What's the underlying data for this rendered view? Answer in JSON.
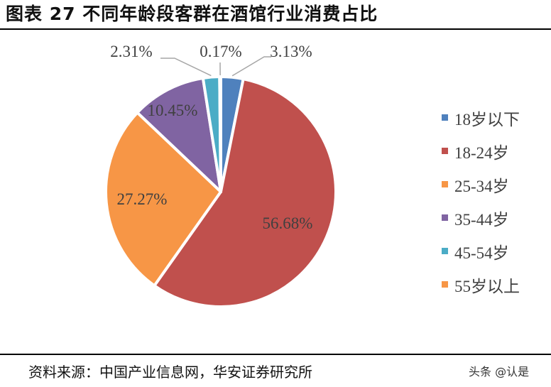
{
  "header": {
    "title": "图表 27  不同年龄段客群在酒馆行业消费占比"
  },
  "footer": {
    "source": "资料来源：中国产业信息网，华安证券研究所",
    "watermark": "头条 @认是"
  },
  "chart_data": {
    "type": "pie",
    "title": "不同年龄段客群在酒馆行业消费占比",
    "start_angle_deg": 0,
    "direction": "clockwise",
    "legend_position": "right",
    "categories": [
      "18岁以下",
      "18-24岁",
      "25-34岁",
      "35-44岁",
      "45-54岁",
      "55岁以上"
    ],
    "values": [
      3.13,
      56.68,
      27.27,
      10.45,
      2.31,
      0.17
    ],
    "labels": [
      "3.13%",
      "56.68%",
      "27.27%",
      "10.45%",
      "2.31%",
      "0.17%"
    ],
    "colors": [
      "#4f81bd",
      "#c0504d",
      "#f79646",
      "#8064a2",
      "#4bacc6",
      "#f79646"
    ],
    "unit": "%"
  },
  "legend": {
    "items": [
      {
        "label": "18岁以下",
        "color": "#4f81bd"
      },
      {
        "label": "18-24岁",
        "color": "#c0504d"
      },
      {
        "label": "25-34岁",
        "color": "#f79646"
      },
      {
        "label": "35-44岁",
        "color": "#8064a2"
      },
      {
        "label": "45-54岁",
        "color": "#4bacc6"
      },
      {
        "label": "55岁以上",
        "color": "#f79646"
      }
    ]
  }
}
